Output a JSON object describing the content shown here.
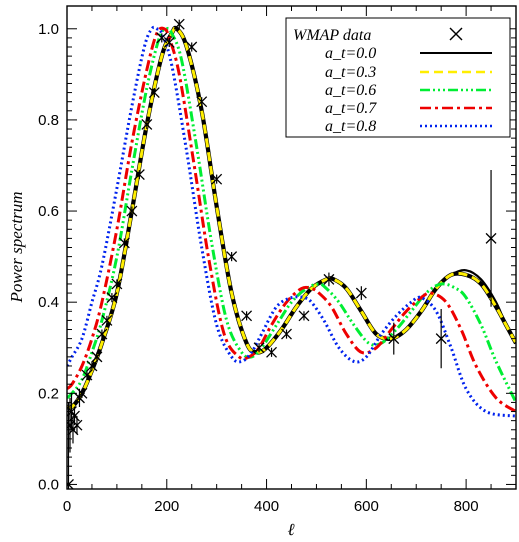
{
  "chart_data": {
    "type": "line",
    "xlabel": "ℓ",
    "ylabel": "Power spectrum",
    "xlim": [
      0,
      900
    ],
    "ylim": [
      -0.01,
      1.05
    ],
    "xticks": [
      0,
      200,
      400,
      600,
      800
    ],
    "yticks": [
      0.0,
      0.2,
      0.4,
      0.6,
      0.8,
      1.0
    ],
    "xtick_labels": [
      "0",
      "200",
      "400",
      "600",
      "800"
    ],
    "ytick_labels": [
      "0.0",
      "0.2",
      "0.4",
      "0.6",
      "0.8",
      "1.0"
    ],
    "grid": false,
    "legend_position": "top-right",
    "series": [
      {
        "name": "a_t=0.0",
        "color": "#000000",
        "dash": "",
        "x": [
          0,
          10,
          30,
          50,
          70,
          100,
          130,
          160,
          190,
          210,
          220,
          240,
          270,
          300,
          330,
          360,
          380,
          400,
          430,
          460,
          490,
          520,
          535,
          560,
          590,
          620,
          650,
          680,
          710,
          740,
          770,
          800,
          830,
          860,
          880,
          900
        ],
        "y": [
          0.17,
          0.17,
          0.2,
          0.25,
          0.31,
          0.42,
          0.6,
          0.79,
          0.94,
          0.99,
          1.0,
          0.96,
          0.82,
          0.61,
          0.42,
          0.31,
          0.29,
          0.3,
          0.34,
          0.39,
          0.43,
          0.45,
          0.45,
          0.43,
          0.38,
          0.33,
          0.32,
          0.34,
          0.38,
          0.43,
          0.46,
          0.47,
          0.45,
          0.4,
          0.35,
          0.31
        ]
      },
      {
        "name": "a_t=0.3",
        "color": "#ffee00",
        "dash": "9,5",
        "x": [
          0,
          10,
          30,
          50,
          70,
          100,
          130,
          160,
          190,
          210,
          220,
          240,
          270,
          300,
          330,
          360,
          380,
          400,
          430,
          460,
          490,
          520,
          535,
          560,
          590,
          620,
          650,
          680,
          710,
          740,
          770,
          800,
          830,
          860,
          880,
          900
        ],
        "y": [
          0.17,
          0.17,
          0.2,
          0.25,
          0.31,
          0.42,
          0.6,
          0.79,
          0.94,
          0.99,
          1.0,
          0.96,
          0.82,
          0.61,
          0.42,
          0.31,
          0.29,
          0.3,
          0.34,
          0.39,
          0.43,
          0.45,
          0.45,
          0.43,
          0.38,
          0.33,
          0.32,
          0.34,
          0.38,
          0.43,
          0.46,
          0.46,
          0.44,
          0.39,
          0.35,
          0.31
        ]
      },
      {
        "name": "a_t=0.6",
        "color": "#00ee33",
        "dash": "10,3,2,3,2,3,2,3",
        "x": [
          0,
          10,
          30,
          50,
          70,
          100,
          130,
          160,
          185,
          200,
          210,
          230,
          260,
          290,
          320,
          350,
          370,
          390,
          420,
          450,
          480,
          505,
          520,
          545,
          575,
          605,
          630,
          660,
          690,
          720,
          750,
          780,
          800,
          830,
          860,
          900
        ],
        "y": [
          0.19,
          0.2,
          0.23,
          0.29,
          0.36,
          0.5,
          0.69,
          0.87,
          0.98,
          1.0,
          0.99,
          0.93,
          0.74,
          0.53,
          0.36,
          0.29,
          0.28,
          0.3,
          0.35,
          0.4,
          0.43,
          0.44,
          0.43,
          0.4,
          0.35,
          0.31,
          0.31,
          0.34,
          0.38,
          0.42,
          0.44,
          0.43,
          0.41,
          0.35,
          0.27,
          0.18
        ]
      },
      {
        "name": "a_t=0.7",
        "color": "#ee0000",
        "dash": "11,4,3,4",
        "x": [
          0,
          10,
          30,
          50,
          70,
          100,
          130,
          160,
          180,
          195,
          205,
          225,
          255,
          285,
          315,
          345,
          365,
          385,
          410,
          440,
          470,
          490,
          505,
          530,
          560,
          590,
          620,
          650,
          680,
          710,
          730,
          760,
          790,
          820,
          860,
          900
        ],
        "y": [
          0.21,
          0.22,
          0.26,
          0.32,
          0.4,
          0.56,
          0.75,
          0.91,
          0.99,
          1.0,
          0.98,
          0.9,
          0.7,
          0.49,
          0.33,
          0.28,
          0.28,
          0.3,
          0.35,
          0.4,
          0.43,
          0.43,
          0.42,
          0.39,
          0.33,
          0.29,
          0.3,
          0.34,
          0.38,
          0.41,
          0.42,
          0.4,
          0.34,
          0.26,
          0.19,
          0.16
        ]
      },
      {
        "name": "a_t=0.8",
        "color": "#0022ee",
        "dash": "2,3",
        "x": [
          0,
          10,
          30,
          50,
          70,
          100,
          130,
          155,
          170,
          180,
          190,
          210,
          240,
          270,
          300,
          330,
          350,
          370,
          390,
          420,
          450,
          475,
          490,
          515,
          545,
          575,
          600,
          630,
          660,
          690,
          710,
          740,
          770,
          800,
          840,
          900
        ],
        "y": [
          0.26,
          0.28,
          0.32,
          0.4,
          0.48,
          0.65,
          0.83,
          0.96,
          1.0,
          1.0,
          0.99,
          0.92,
          0.73,
          0.52,
          0.35,
          0.28,
          0.27,
          0.29,
          0.33,
          0.39,
          0.41,
          0.41,
          0.4,
          0.36,
          0.3,
          0.27,
          0.28,
          0.33,
          0.37,
          0.4,
          0.41,
          0.38,
          0.3,
          0.21,
          0.16,
          0.15
        ]
      }
    ],
    "data_points": {
      "name": "WMAP data",
      "marker": "x",
      "color": "#000000",
      "points": [
        {
          "x": 3,
          "y": 0.0,
          "err": 0.18
        },
        {
          "x": 6,
          "y": 0.13,
          "err": 0.06
        },
        {
          "x": 9,
          "y": 0.16,
          "err": 0.04
        },
        {
          "x": 12,
          "y": 0.12,
          "err": 0.03
        },
        {
          "x": 15,
          "y": 0.15,
          "err": 0.02
        },
        {
          "x": 20,
          "y": 0.13,
          "err": 0.02
        },
        {
          "x": 25,
          "y": 0.19,
          "err": 0.02
        },
        {
          "x": 30,
          "y": 0.2,
          "err": 0.01
        },
        {
          "x": 40,
          "y": 0.24,
          "err": 0.01
        },
        {
          "x": 50,
          "y": 0.26,
          "err": 0.01
        },
        {
          "x": 60,
          "y": 0.28,
          "err": 0.01
        },
        {
          "x": 70,
          "y": 0.33,
          "err": 0.01
        },
        {
          "x": 80,
          "y": 0.36,
          "err": 0.01
        },
        {
          "x": 90,
          "y": 0.41,
          "err": 0.01
        },
        {
          "x": 100,
          "y": 0.44,
          "err": 0.01
        },
        {
          "x": 115,
          "y": 0.53,
          "err": 0.01
        },
        {
          "x": 130,
          "y": 0.6,
          "err": 0.01
        },
        {
          "x": 145,
          "y": 0.68,
          "err": 0.01
        },
        {
          "x": 160,
          "y": 0.79,
          "err": 0.01
        },
        {
          "x": 175,
          "y": 0.86,
          "err": 0.01
        },
        {
          "x": 190,
          "y": 0.98,
          "err": 0.01
        },
        {
          "x": 205,
          "y": 0.97,
          "err": 0.01
        },
        {
          "x": 225,
          "y": 1.01,
          "err": 0.01
        },
        {
          "x": 250,
          "y": 0.96,
          "err": 0.01
        },
        {
          "x": 270,
          "y": 0.84,
          "err": 0.01
        },
        {
          "x": 300,
          "y": 0.67,
          "err": 0.01
        },
        {
          "x": 330,
          "y": 0.5,
          "err": 0.01
        },
        {
          "x": 360,
          "y": 0.37,
          "err": 0.01
        },
        {
          "x": 385,
          "y": 0.3,
          "err": 0.01
        },
        {
          "x": 410,
          "y": 0.29,
          "err": 0.01
        },
        {
          "x": 440,
          "y": 0.33,
          "err": 0.01
        },
        {
          "x": 475,
          "y": 0.37,
          "err": 0.01
        },
        {
          "x": 525,
          "y": 0.45,
          "err": 0.015
        },
        {
          "x": 590,
          "y": 0.42,
          "err": 0.015
        },
        {
          "x": 655,
          "y": 0.32,
          "err": 0.035
        },
        {
          "x": 750,
          "y": 0.32,
          "err": 0.065
        },
        {
          "x": 850,
          "y": 0.54,
          "err": 0.15
        }
      ]
    }
  },
  "legend": {
    "entries": [
      {
        "label": "WMAP data"
      },
      {
        "label": "a_t=0.0"
      },
      {
        "label": "a_t=0.3"
      },
      {
        "label": "a_t=0.6"
      },
      {
        "label": "a_t=0.7"
      },
      {
        "label": "a_t=0.8"
      }
    ]
  }
}
